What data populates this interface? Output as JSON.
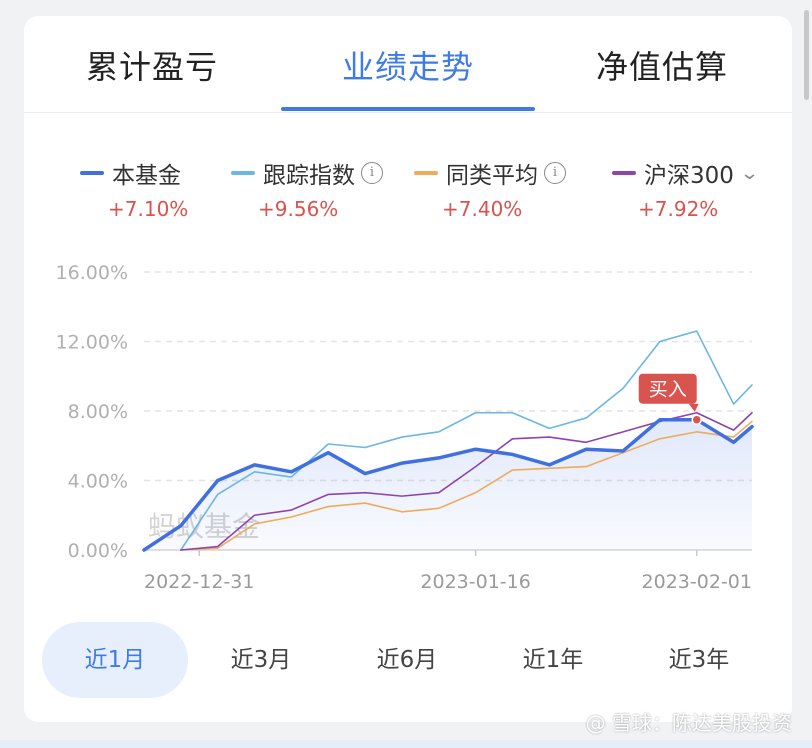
{
  "tabs": [
    {
      "label": "累计盈亏"
    },
    {
      "label": "业绩走势"
    },
    {
      "label": "净值估算"
    }
  ],
  "legend": [
    {
      "label": "本基金",
      "value": "+7.10%",
      "color": "#3f6fe0"
    },
    {
      "label": "跟踪指数",
      "value": "+9.56%",
      "color": "#6ab7e6"
    },
    {
      "label": "同类平均",
      "value": "+7.40%",
      "color": "#efab5a"
    },
    {
      "label": "沪深300",
      "value": "+7.92%",
      "color": "#8e44ad"
    }
  ],
  "info_icon_glyph": "i",
  "chart_data": {
    "type": "line",
    "yticks": [
      "16.00%",
      "12.00%",
      "8.00%",
      "4.00%",
      "0.00%"
    ],
    "ylim": [
      0,
      16
    ],
    "xlim": [
      0,
      33
    ],
    "xticks": [
      {
        "label": "2022-12-31",
        "x": 3
      },
      {
        "label": "2023-01-16",
        "x": 18
      },
      {
        "label": "2023-02-01",
        "x": 30
      }
    ],
    "buy_marker": {
      "label": "买入",
      "x": 30,
      "y": 7.5
    },
    "watermark": "蚂蚁基金",
    "series": [
      {
        "name": "本基金",
        "color": "#3f6fe0",
        "width": 3.5,
        "fill": true,
        "x": [
          0,
          2,
          4,
          6,
          8,
          10,
          12,
          14,
          16,
          18,
          20,
          22,
          24,
          26,
          28,
          30,
          32,
          33
        ],
        "y": [
          0.0,
          1.4,
          4.0,
          4.9,
          4.5,
          5.6,
          4.4,
          5.0,
          5.3,
          5.8,
          5.5,
          4.9,
          5.8,
          5.7,
          7.5,
          7.5,
          6.2,
          7.1
        ]
      },
      {
        "name": "跟踪指数",
        "color": "#6ab7e6",
        "width": 1.6,
        "fill": false,
        "x": [
          2,
          4,
          6,
          8,
          10,
          12,
          14,
          16,
          18,
          20,
          22,
          24,
          26,
          28,
          30,
          32,
          33
        ],
        "y": [
          0.0,
          3.2,
          4.5,
          4.2,
          6.1,
          5.9,
          6.5,
          6.8,
          7.9,
          7.9,
          7.0,
          7.6,
          9.3,
          12.0,
          12.6,
          8.4,
          9.5
        ]
      },
      {
        "name": "同类平均",
        "color": "#efab5a",
        "width": 1.6,
        "fill": false,
        "x": [
          2,
          4,
          6,
          8,
          10,
          12,
          14,
          16,
          18,
          20,
          22,
          24,
          26,
          28,
          30,
          32,
          33
        ],
        "y": [
          0.0,
          0.1,
          1.5,
          1.9,
          2.5,
          2.7,
          2.2,
          2.4,
          3.3,
          4.6,
          4.7,
          4.8,
          5.6,
          6.4,
          6.8,
          6.5,
          7.4
        ]
      },
      {
        "name": "沪深300",
        "color": "#8e44ad",
        "width": 1.6,
        "fill": false,
        "x": [
          2,
          4,
          6,
          8,
          10,
          12,
          14,
          16,
          18,
          20,
          22,
          24,
          26,
          28,
          30,
          32,
          33
        ],
        "y": [
          0.0,
          0.2,
          2.0,
          2.3,
          3.2,
          3.3,
          3.1,
          3.3,
          4.8,
          6.4,
          6.5,
          6.2,
          6.8,
          7.4,
          7.9,
          6.9,
          7.9
        ]
      }
    ]
  },
  "ranges": [
    {
      "label": "近1月",
      "active": true
    },
    {
      "label": "近3月",
      "active": false
    },
    {
      "label": "近6月",
      "active": false
    },
    {
      "label": "近1年",
      "active": false
    },
    {
      "label": "近3年",
      "active": false
    }
  ],
  "footer_watermark": "@ 雪球：陈达美股投资"
}
